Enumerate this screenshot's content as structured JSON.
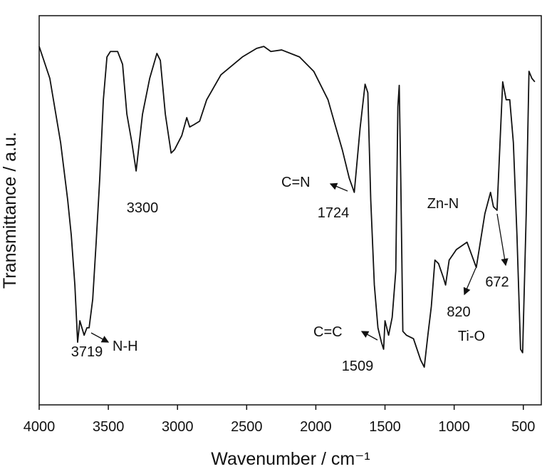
{
  "chart_data": {
    "type": "line",
    "x_label": "Wavenumber / cm⁻¹",
    "y_label": "Transmittance / a.u.",
    "xlim": [
      4000,
      370
    ],
    "ylim": [
      0,
      100
    ],
    "xticks": [
      4000,
      3500,
      3000,
      2500,
      2000,
      1500,
      1000,
      500
    ],
    "series": [
      {
        "color": "#111111",
        "x": [
          4000,
          3923,
          3845,
          3794,
          3768,
          3742,
          3722,
          3706,
          3675,
          3655,
          3639,
          3613,
          3588,
          3562,
          3536,
          3510,
          3485,
          3433,
          3397,
          3366,
          3330,
          3299,
          3253,
          3201,
          3149,
          3124,
          3088,
          3046,
          3021,
          2969,
          2933,
          2912,
          2881,
          2840,
          2789,
          2686,
          2531,
          2428,
          2376,
          2325,
          2247,
          2118,
          2015,
          1912,
          1861,
          1809,
          1758,
          1722,
          1680,
          1644,
          1624,
          1603,
          1577,
          1551,
          1526,
          1510,
          1500,
          1474,
          1448,
          1422,
          1407,
          1397,
          1386,
          1371,
          1345,
          1294,
          1242,
          1216,
          1190,
          1165,
          1139,
          1113,
          1077,
          1062,
          1036,
          984,
          907,
          840,
          778,
          737,
          716,
          690,
          649,
          624,
          598,
          572,
          546,
          520,
          505,
          479,
          459,
          438,
          417
        ],
        "values": [
          92.1,
          83.9,
          67.4,
          52.7,
          43.6,
          30.8,
          16.1,
          21.6,
          17.9,
          19.8,
          19.8,
          27.1,
          41.8,
          58.2,
          78.4,
          89.4,
          90.8,
          90.8,
          87.5,
          74.7,
          67.4,
          60.1,
          74.7,
          83.9,
          90.3,
          88.5,
          74.7,
          64.7,
          65.6,
          69.2,
          73.8,
          71.4,
          72.0,
          72.9,
          78.4,
          84.8,
          89.4,
          91.6,
          92.1,
          90.8,
          91.2,
          89.4,
          85.7,
          78.4,
          72.0,
          65.6,
          58.2,
          54.6,
          71.1,
          82.4,
          80.2,
          52.7,
          30.8,
          19.8,
          16.1,
          14.3,
          21.6,
          17.9,
          22.5,
          34.4,
          76.6,
          82.1,
          58.2,
          18.9,
          17.9,
          17.0,
          11.5,
          9.7,
          17.9,
          25.3,
          37.2,
          36.3,
          32.6,
          30.8,
          37.2,
          39.9,
          41.8,
          35.3,
          49.1,
          54.6,
          50.9,
          50.0,
          83.0,
          78.4,
          78.4,
          67.4,
          43.6,
          14.3,
          13.4,
          49.1,
          85.7,
          83.9,
          83.0
        ]
      }
    ],
    "annotations": [
      "3719",
      "N-H",
      "3300",
      "C=N",
      "1724",
      "C=C",
      "1509",
      "Zn-N",
      "672",
      "820",
      "Ti-O"
    ]
  }
}
